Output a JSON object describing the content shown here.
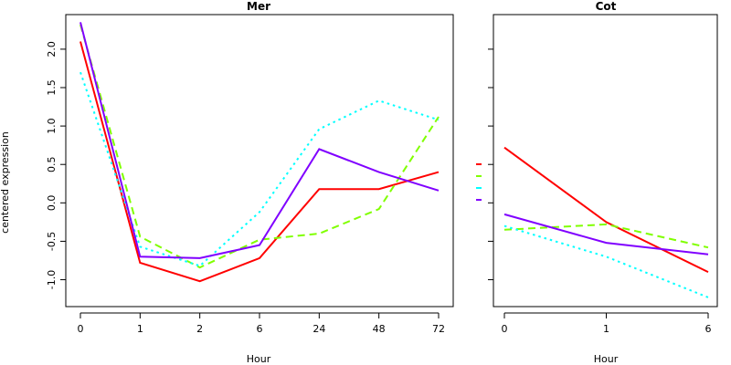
{
  "chart_data": [
    {
      "type": "line",
      "title": "Mer",
      "xlabel": "Hour",
      "ylabel": "centered expression",
      "categories": [
        "0",
        "1",
        "2",
        "6",
        "24",
        "48",
        "72"
      ],
      "ylim": [
        -1.35,
        2.45
      ],
      "yticks": [
        "-1.0",
        "-0.5",
        "0.0",
        "0.5",
        "1.0",
        "1.5",
        "2.0"
      ],
      "series": [
        {
          "color": "#ff0000",
          "dash": "solid",
          "values": [
            2.1,
            -0.78,
            -1.02,
            -0.72,
            0.18,
            0.18,
            0.4
          ]
        },
        {
          "color": "#80ff00",
          "dash": "dashed",
          "values": [
            2.32,
            -0.44,
            -0.84,
            -0.48,
            -0.4,
            -0.08,
            1.12
          ]
        },
        {
          "color": "#00ffff",
          "dash": "dotted",
          "values": [
            1.7,
            -0.57,
            -0.82,
            -0.12,
            0.96,
            1.33,
            1.08
          ]
        },
        {
          "color": "#8000ff",
          "dash": "solid",
          "values": [
            2.35,
            -0.7,
            -0.72,
            -0.55,
            0.7,
            0.4,
            0.16
          ]
        }
      ]
    },
    {
      "type": "line",
      "title": "Cot",
      "xlabel": "Hour",
      "ylabel": "",
      "categories": [
        "0",
        "1",
        "6"
      ],
      "ylim": [
        -1.35,
        2.45
      ],
      "series": [
        {
          "color": "#ff0000",
          "dash": "solid",
          "values": [
            0.72,
            -0.25,
            -0.9
          ]
        },
        {
          "color": "#80ff00",
          "dash": "dashed",
          "values": [
            -0.35,
            -0.28,
            -0.58
          ]
        },
        {
          "color": "#00ffff",
          "dash": "dotted",
          "values": [
            -0.3,
            -0.7,
            -1.23
          ]
        },
        {
          "color": "#8000ff",
          "dash": "solid",
          "values": [
            -0.15,
            -0.52,
            -0.67
          ]
        }
      ]
    }
  ]
}
